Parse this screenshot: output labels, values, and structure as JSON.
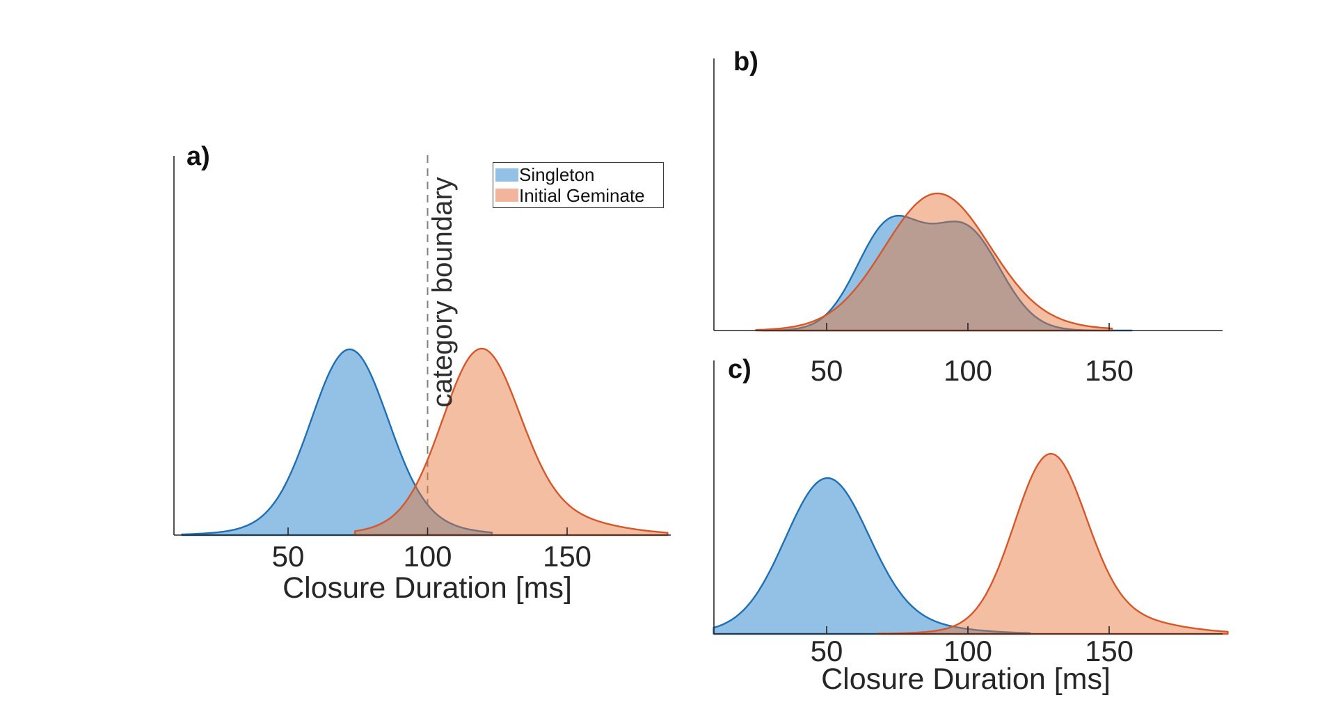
{
  "figure": {
    "background": "#ffffff",
    "legend": {
      "items": [
        {
          "label": "Singleton",
          "color_key": "blue"
        },
        {
          "label": "Initial Geminate",
          "color_key": "orange"
        }
      ]
    }
  },
  "chart_data": {
    "type": "area",
    "subtype": "kernel-density",
    "xlabel": "Closure Duration [ms]",
    "x_ticks": [
      50,
      100,
      150
    ],
    "legend_position": "top-left-panel-a",
    "grid": false,
    "style": {
      "blue_fill": "#92C1E5",
      "blue_stroke": "#1F6FB2",
      "orange_fill_base": "#E67438",
      "orange_fill_alpha": 0.47,
      "orange_fill_visual": "#F2B49C",
      "orange_stroke": "#D4582B",
      "overlap_color": "#B29893",
      "axis_color": "#262626",
      "boundary_line_color": "#7f7f7f"
    },
    "panels": [
      {
        "id": "a",
        "label": "a)",
        "xlabel": "Closure Duration [ms]",
        "x_ticks": [
          50,
          100,
          150
        ],
        "x_range": [
          9,
          187
        ],
        "boundary": {
          "x_ms": 100,
          "label": "category boundary",
          "line_style": "dashed"
        },
        "series": [
          {
            "name": "Singleton",
            "color": "blue",
            "domain_ms": [
              12,
              123
            ],
            "peak_frac": 0.49,
            "components": [
              {
                "mean": 72,
                "sd": 13.5,
                "weight": 1
              },
              {
                "mean": 74,
                "sd": 24,
                "weight": 0.12
              }
            ]
          },
          {
            "name": "Initial Geminate",
            "color": "orange",
            "domain_ms": [
              74,
              186
            ],
            "peak_frac": 0.492,
            "components": [
              {
                "mean": 119,
                "sd": 13.5,
                "weight": 1
              },
              {
                "mean": 128,
                "sd": 26,
                "weight": 0.18
              }
            ]
          }
        ]
      },
      {
        "id": "b",
        "label": "b)",
        "xlabel": "",
        "x_ticks": [
          50,
          100,
          150
        ],
        "x_range": [
          10,
          190
        ],
        "series": [
          {
            "name": "Singleton",
            "color": "blue",
            "domain_ms": [
              27,
              158
            ],
            "peak_frac": 0.422,
            "components": [
              {
                "mean": 72,
                "sd": 11.5,
                "weight": 1
              },
              {
                "mean": 99,
                "sd": 12.5,
                "weight": 0.98
              }
            ]
          },
          {
            "name": "Initial Geminate",
            "color": "orange",
            "domain_ms": [
              25,
              151
            ],
            "peak_frac": 0.504,
            "components": [
              {
                "mean": 89,
                "sd": 18.5,
                "weight": 1
              },
              {
                "mean": 100,
                "sd": 30,
                "weight": 0.05
              }
            ]
          }
        ]
      },
      {
        "id": "c",
        "label": "c)",
        "xlabel": "Closure Duration [ms]",
        "x_ticks": [
          50,
          100,
          150
        ],
        "x_range": [
          10,
          190
        ],
        "series": [
          {
            "name": "Singleton",
            "color": "blue",
            "domain_ms": [
              10,
              122
            ],
            "peak_frac": 0.57,
            "components": [
              {
                "mean": 50,
                "sd": 14.5,
                "weight": 1
              },
              {
                "mean": 58,
                "sd": 26,
                "weight": 0.12
              }
            ]
          },
          {
            "name": "Initial Geminate",
            "color": "orange",
            "domain_ms": [
              68,
              192
            ],
            "peak_frac": 0.659,
            "components": [
              {
                "mean": 129,
                "sd": 12.5,
                "weight": 1
              },
              {
                "mean": 140,
                "sd": 24,
                "weight": 0.14
              }
            ]
          }
        ]
      }
    ]
  }
}
